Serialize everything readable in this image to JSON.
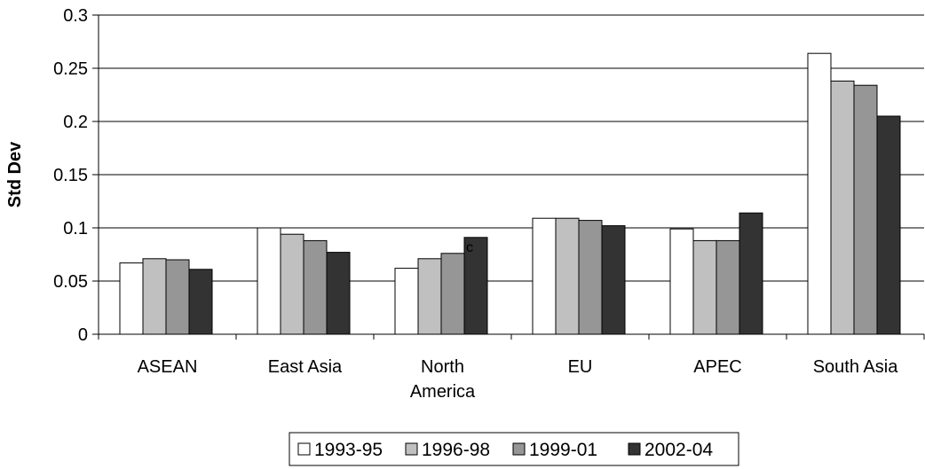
{
  "chart_data": {
    "type": "bar",
    "title": "",
    "xlabel": "",
    "ylabel": "Std Dev",
    "ylim": [
      0,
      0.3
    ],
    "y_ticks": [
      "0",
      "0.05",
      "0.1",
      "0.15",
      "0.2",
      "0.25",
      "0.3"
    ],
    "grid": true,
    "legend_position": "bottom",
    "categories": [
      [
        "ASEAN"
      ],
      [
        "East Asia"
      ],
      [
        "North",
        "America"
      ],
      [
        "EU"
      ],
      [
        "APEC"
      ],
      [
        "South Asia"
      ]
    ],
    "series": [
      {
        "name": "1993-95",
        "color": "#ffffff",
        "values": [
          0.067,
          0.1,
          0.062,
          0.109,
          0.099,
          0.264
        ]
      },
      {
        "name": "1996-98",
        "color": "#c0c0c0",
        "values": [
          0.071,
          0.094,
          0.071,
          0.109,
          0.088,
          0.238
        ]
      },
      {
        "name": "1999-01",
        "color": "#969696",
        "values": [
          0.07,
          0.088,
          0.076,
          0.107,
          0.088,
          0.234
        ]
      },
      {
        "name": "2002-04",
        "color": "#333333",
        "values": [
          0.061,
          0.077,
          0.091,
          0.102,
          0.114,
          0.205
        ]
      }
    ],
    "annotations": [
      {
        "text": "c",
        "category": 2,
        "series": 3
      }
    ]
  }
}
